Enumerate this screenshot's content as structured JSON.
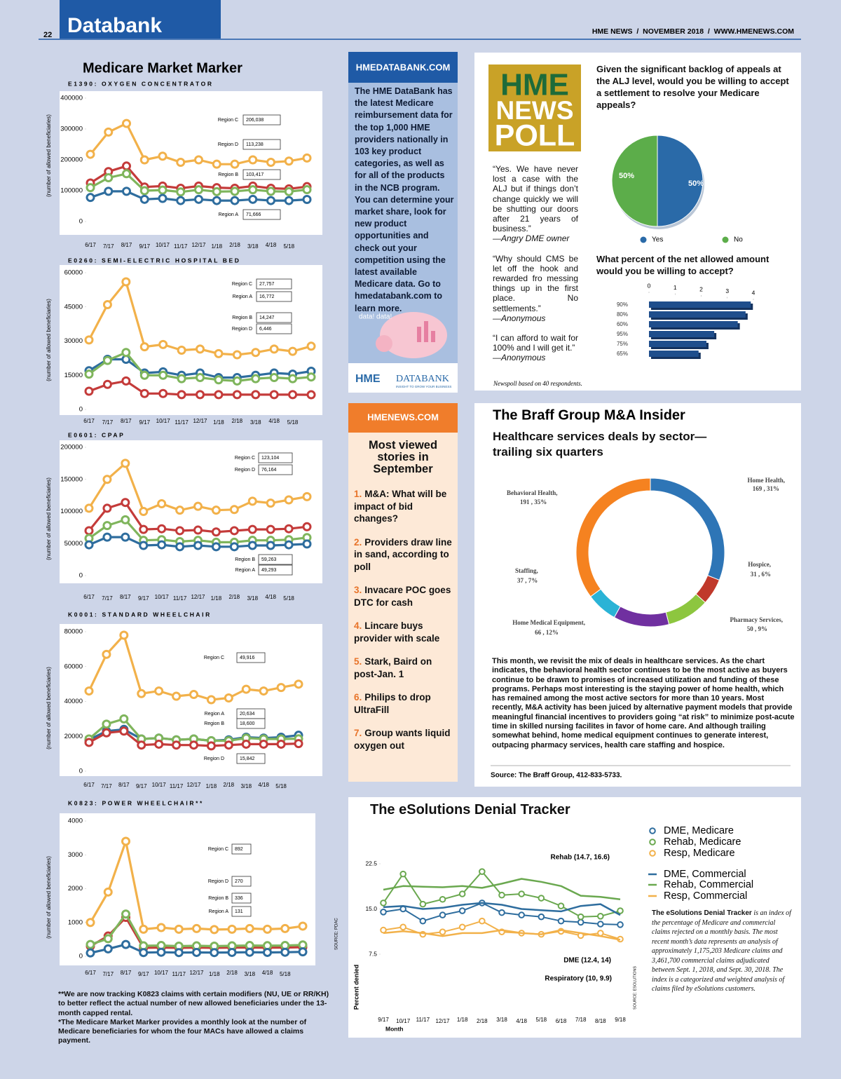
{
  "header": {
    "page": "22",
    "section": "Databank",
    "masthead": "HME NEWS  /  NOVEMBER 2018  /  WWW.HMENEWS.COM"
  },
  "market_marker": {
    "title": "Medicare Market Marker",
    "footnotes": [
      "**We are now tracking K0823 claims with certain modifiers (NU, UE or RR/KH) to better reflect the actual number of new allowed beneficiaries under the 13-month capped rental.",
      "*The Medicare Market Marker provides a monthly look at the number of Medicare beneficiaries for whom the four MACs have allowed a claims payment."
    ],
    "source": "SOURCE: PDAC"
  },
  "databank_ad": {
    "header": "HMEDATABANK.COM",
    "body": "The HME DataBank has the latest Medicare reimbursement data for the top 1,000 HME providers nationally in 103 key product categories, as well as for all of the products in the NCB program. You can determine your market share, look for new product opportunities and check out your competition using the latest available Medicare data. Go to hmedatabank.com to learn more.",
    "bubble": "data! data!",
    "logo_a": "HME",
    "logo_b": "DATABANK",
    "tagline": "INSIGHT TO GROW YOUR BUSINESS"
  },
  "most_viewed": {
    "header": "HMENEWS.COM",
    "title": "Most viewed stories in September",
    "items": [
      {
        "num": "1.",
        "text": "M&A: What will be impact of bid changes?"
      },
      {
        "num": "2.",
        "text": "Providers draw line in sand, according to poll"
      },
      {
        "num": "3.",
        "text": "Invacare POC goes DTC for cash"
      },
      {
        "num": "4.",
        "text": "Lincare buys provider with scale"
      },
      {
        "num": "5.",
        "text": "Stark, Baird on post-Jan. 1"
      },
      {
        "num": "6.",
        "text": "Philips to drop UltraFill"
      },
      {
        "num": "7.",
        "text": "Group wants liquid oxygen out"
      }
    ]
  },
  "poll": {
    "logo": [
      "HME",
      "NEWS",
      "POLL"
    ],
    "quotes": [
      {
        "text": "“Yes. We have never lost a case with the ALJ but if things don’t change quickly we will be shutting our doors after 21 years of business.”",
        "by": "—Angry DME owner"
      },
      {
        "text": "“Why should CMS be let off the hook and rewarded fro messing things up in the first place. No settlements.”",
        "by": "—Anonymous"
      },
      {
        "text": "“I can afford to wait for 100% and I will get it.”",
        "by": "—Anonymous"
      }
    ],
    "note": "Newspoll based on 40 respondents."
  },
  "braff": {
    "title": "The Braff Group M&A Insider",
    "subtitle": "Healthcare services deals by sector—trailing six quarters",
    "body": "This month, we revisit the mix of deals in healthcare services. As the chart indicates, the behavioral health sector continues to be the most active as buyers continue to be drawn to promises of increased utilization and funding of these programs. Perhaps most interesting is the staying power of home health, which has remained among the most active sectors for more than 10 years. Most recently, M&A activity has been juiced by alternative payment models that provide meaningful financial incentives to providers going “at risk” to minimize post-acute time in skilled nursing facilites in favor of home care. And although trailing somewhat behind, home medical equipment continues to generate interest, outpacing pharmacy services, health care staffing and hospice.",
    "source": "Source: The Braff Group, 412-833-5733."
  },
  "denial": {
    "desc_lead": "The eSolutions Denial Tracker",
    "desc": "is an index of the percentage of Medicare and commercial claims rejected on a monthly basis. The most recent month’s data represents an analysis of approximately 1,175,203 Medicare claims and 3,461,700 commercial claims adjudicated between Sept. 1, 2018, and Sept. 30, 2018. The index is a categorized and weighted analysis of claims filed by eSolutions customers.",
    "source": "SOURCE: ESOLUTIONS"
  },
  "chart_data": [
    {
      "type": "line",
      "title": "E1390: OXYGEN CONCENTRATOR",
      "ylabel": "(number of allowed beneficiaries)",
      "marker": "o",
      "categories": [
        "6/17",
        "7/17",
        "8/17",
        "9/17",
        "10/17",
        "11/17",
        "12/17",
        "1/18",
        "2/18",
        "3/18",
        "4/18",
        "5/18",
        null
      ],
      "ylim": [
        0,
        400000
      ],
      "yticks": [
        0,
        100000,
        200000,
        300000,
        400000
      ],
      "series": [
        {
          "name": "Region C",
          "color": "#f2b14a",
          "value_label": "206,038",
          "values": [
            218000,
            290000,
            318000,
            200000,
            212000,
            192000,
            200000,
            186000,
            186000,
            200000,
            192000,
            196000,
            206038
          ]
        },
        {
          "name": "Region D",
          "color": "#c43b3a",
          "value_label": "113,238",
          "values": [
            125000,
            162000,
            180000,
            112000,
            115000,
            108000,
            115000,
            110000,
            108000,
            115000,
            108000,
            106000,
            113238
          ]
        },
        {
          "name": "Region B",
          "color": "#7fb55c",
          "value_label": "103,417",
          "values": [
            110000,
            142000,
            155000,
            100000,
            102000,
            96000,
            103000,
            97000,
            98000,
            103000,
            98000,
            97000,
            103417
          ]
        },
        {
          "name": "Region A",
          "color": "#2e6d9e",
          "value_label": "71,666",
          "values": [
            78000,
            98000,
            98000,
            72000,
            75000,
            68000,
            72000,
            68000,
            68000,
            72000,
            68000,
            68000,
            71666
          ]
        }
      ]
    },
    {
      "type": "line",
      "title": "E0260: SEMI-ELECTRIC HOSPITAL BED",
      "ylabel": "(number of allowed beneficiaries)",
      "marker": "o",
      "categories": [
        "6/17",
        "7/17",
        "8/17",
        "9/17",
        "10/17",
        "11/17",
        "12/17",
        "1/18",
        "2/18",
        "3/18",
        "4/18",
        "5/18",
        null
      ],
      "ylim": [
        0,
        60000
      ],
      "yticks": [
        0,
        15000,
        30000,
        45000,
        60000
      ],
      "series": [
        {
          "name": "Region C",
          "color": "#f2b14a",
          "value_label": "27,757",
          "values": [
            30500,
            46000,
            56000,
            27500,
            28500,
            26000,
            26500,
            24500,
            24000,
            25000,
            26500,
            25500,
            27757
          ]
        },
        {
          "name": "Region A",
          "color": "#2e6d9e",
          "value_label": "16,772",
          "values": [
            17000,
            22000,
            22000,
            16000,
            16500,
            15000,
            16000,
            14000,
            14000,
            15000,
            16000,
            15500,
            16772
          ]
        },
        {
          "name": "Region B",
          "color": "#7fb55c",
          "value_label": "14,247",
          "values": [
            15500,
            21500,
            25000,
            15000,
            15000,
            13500,
            14000,
            13000,
            12500,
            13500,
            14000,
            13500,
            14247
          ]
        },
        {
          "name": "Region D",
          "color": "#c43b3a",
          "value_label": "6,446",
          "values": [
            8000,
            11000,
            12500,
            7000,
            7000,
            6500,
            6500,
            6500,
            6500,
            6500,
            6500,
            6500,
            6446
          ]
        }
      ]
    },
    {
      "type": "line",
      "title": "E0601: CPAP",
      "ylabel": "(number of allowed beneficiaries)",
      "marker": "o",
      "categories": [
        "6/17",
        "7/17",
        "8/17",
        "9/17",
        "10/17",
        "11/17",
        "12/17",
        "1/18",
        "2/18",
        "3/18",
        "4/18",
        "5/18",
        null
      ],
      "ylim": [
        0,
        200000
      ],
      "yticks": [
        0,
        50000,
        100000,
        150000,
        200000
      ],
      "series": [
        {
          "name": "Region C",
          "color": "#f2b14a",
          "value_label": "123,104",
          "values": [
            105000,
            150000,
            175000,
            100000,
            112000,
            102000,
            108000,
            102000,
            103000,
            116000,
            113000,
            118000,
            123104
          ]
        },
        {
          "name": "Region D",
          "color": "#c43b3a",
          "value_label": "76,164",
          "values": [
            70000,
            105000,
            114000,
            72000,
            73000,
            70000,
            71000,
            68000,
            70000,
            72000,
            72000,
            73000,
            76164
          ]
        },
        {
          "name": "Region B",
          "color": "#7fb55c",
          "value_label": "59,263",
          "values": [
            58000,
            78000,
            87000,
            55000,
            56000,
            53000,
            55000,
            52000,
            52000,
            55000,
            55000,
            56000,
            59263
          ]
        },
        {
          "name": "Region A",
          "color": "#2e6d9e",
          "value_label": "49,293",
          "values": [
            48000,
            60000,
            60000,
            47000,
            48000,
            45000,
            47000,
            45000,
            45000,
            47000,
            47000,
            48000,
            49293
          ]
        }
      ]
    },
    {
      "type": "line",
      "title": "K0001: STANDARD WHEELCHAIR",
      "ylabel": "(number of allowed beneficiaries)",
      "marker": "o",
      "categories": [
        "6/17",
        "7/17",
        "8/17",
        "9/17",
        "10/17",
        "11/17",
        "12/17",
        "1/18",
        "2/18",
        "3/18",
        "4/18",
        "5/18",
        null
      ],
      "ylim": [
        0,
        80000
      ],
      "yticks": [
        0,
        20000,
        40000,
        60000,
        80000
      ],
      "series": [
        {
          "name": "Region C",
          "color": "#f2b14a",
          "value_label": "49,916",
          "values": [
            46000,
            67000,
            78000,
            44500,
            46000,
            43000,
            44000,
            41000,
            42000,
            47000,
            46000,
            48000,
            49916
          ]
        },
        {
          "name": "Region A",
          "color": "#2e6d9e",
          "value_label": "20,634",
          "values": [
            18000,
            23000,
            24000,
            18500,
            19000,
            18000,
            18500,
            17500,
            18000,
            19500,
            19000,
            19500,
            20634
          ]
        },
        {
          "name": "Region B",
          "color": "#7fb55c",
          "value_label": "18,600",
          "values": [
            18500,
            27000,
            30000,
            18500,
            19000,
            18000,
            18500,
            17500,
            17500,
            19000,
            18500,
            18500,
            18600
          ]
        },
        {
          "name": "Region D",
          "color": "#c43b3a",
          "value_label": "15,842",
          "values": [
            16500,
            22000,
            23000,
            15000,
            15500,
            15000,
            15000,
            14500,
            15000,
            15500,
            15500,
            15500,
            15842
          ]
        }
      ]
    },
    {
      "type": "line",
      "title": "K0823: POWER WHEELCHAIR**",
      "ylabel": "(number of allowed beneficiaries)",
      "marker": "o",
      "categories": [
        "6/17",
        "7/17",
        "8/17",
        "9/17",
        "10/17",
        "11/17",
        "12/17",
        "1/18",
        "2/18",
        "3/18",
        "4/18",
        "5/18",
        null
      ],
      "ylim": [
        0,
        4000
      ],
      "yticks": [
        0,
        1000,
        2000,
        3000,
        4000
      ],
      "series": [
        {
          "name": "Region C",
          "color": "#f2b14a",
          "value_label": "892",
          "values": [
            1000,
            1900,
            3400,
            800,
            850,
            800,
            820,
            790,
            800,
            820,
            800,
            820,
            892
          ]
        },
        {
          "name": "Region D",
          "color": "#c43b3a",
          "value_label": "270",
          "values": [
            300,
            600,
            1150,
            250,
            260,
            250,
            260,
            250,
            260,
            260,
            255,
            260,
            270
          ]
        },
        {
          "name": "Region B",
          "color": "#7fb55c",
          "value_label": "336",
          "values": [
            350,
            520,
            1250,
            310,
            320,
            300,
            310,
            300,
            310,
            320,
            315,
            320,
            336
          ]
        },
        {
          "name": "Region A",
          "color": "#2e6d9e",
          "value_label": "131",
          "values": [
            100,
            220,
            350,
            110,
            120,
            110,
            115,
            110,
            115,
            120,
            115,
            120,
            131
          ]
        }
      ]
    },
    {
      "type": "pie",
      "title": "Given the significant backlog of appeals at the ALJ level, would you be willing to accept a settlement to resolve your Medicare appeals?",
      "categories": [
        "Yes",
        "No"
      ],
      "values": [
        50,
        50
      ],
      "value_labels": [
        "50%",
        "50%"
      ],
      "colors": [
        "#2a6aa8",
        "#5cad4a"
      ]
    },
    {
      "type": "bar",
      "orientation": "horizontal",
      "title": "What percent of the net allowed amount would you be willing to accept?",
      "categories": [
        "90%",
        "80%",
        "60%",
        "95%",
        "75%",
        "65%"
      ],
      "values": [
        3.9,
        3.7,
        3.4,
        2.5,
        2.2,
        1.9
      ],
      "color": "#1f4e8c",
      "xlim": [
        0,
        4
      ],
      "xticks": [
        0,
        1,
        2,
        3,
        4
      ]
    },
    {
      "type": "donut",
      "categories": [
        "Home Health,",
        "Hospice,",
        "Pharmacy Services,",
        "Home Medical Equipment,",
        "Staffing,",
        "Behavioral Health,"
      ],
      "values": [
        169,
        31,
        50,
        66,
        37,
        191
      ],
      "value_labels": [
        "169 , 31%",
        "31 , 6%",
        "50 , 9%",
        "66 , 12%",
        "37 , 7%",
        "191 , 35%"
      ],
      "colors": [
        "#2e75b6",
        "#c0392b",
        "#8dc63f",
        "#7030a0",
        "#2ab3d6",
        "#f58220"
      ]
    },
    {
      "type": "line",
      "title": "The eSolutions Denial Tracker",
      "ylabel": "Percent denied",
      "xlabel": "Month",
      "categories": [
        "9/17",
        "10/17",
        "11/17",
        "12/17",
        "1/18",
        "2/18",
        "3/18",
        "4/18",
        "5/18",
        "6/18",
        "7/18",
        "8/18",
        "9/18"
      ],
      "ylim": [
        0,
        23.5
      ],
      "yticks": [
        7.5,
        {
          "value": 15,
          "label": "15.0"
        },
        22.5
      ],
      "annotations": [
        "Rehab (14.7, 16.6)",
        "DME (12.4, 14)",
        "Respiratory (10, 9.9)"
      ],
      "series": [
        {
          "name": "DME, Medicare",
          "color": "#2e6d9e",
          "marker": "o",
          "values": [
            14.5,
            15.0,
            13.0,
            14.0,
            14.7,
            16.0,
            14.4,
            14.0,
            13.7,
            13.0,
            12.8,
            12.5,
            12.4
          ]
        },
        {
          "name": "Rehab, Medicare",
          "color": "#6aa84f",
          "marker": "o",
          "values": [
            16.0,
            20.8,
            15.8,
            16.6,
            17.5,
            21.2,
            17.3,
            17.5,
            16.8,
            15.5,
            13.7,
            13.8,
            14.7
          ]
        },
        {
          "name": "Resp, Medicare",
          "color": "#f2b14a",
          "marker": "o",
          "values": [
            11.5,
            12.0,
            10.8,
            11.2,
            12.0,
            13.0,
            11.2,
            11.0,
            10.8,
            11.3,
            10.6,
            11.0,
            10.0
          ]
        },
        {
          "name": "DME, Commercial",
          "color": "#2e6d9e",
          "values": [
            15.3,
            15.5,
            15.0,
            15.2,
            15.7,
            16.0,
            15.7,
            15.0,
            14.8,
            14.6,
            15.5,
            15.8,
            14.0
          ]
        },
        {
          "name": "Rehab, Commercial",
          "color": "#6aa84f",
          "values": [
            18.2,
            18.8,
            18.7,
            18.6,
            18.8,
            18.5,
            19.2,
            20.0,
            19.5,
            18.8,
            17.2,
            17.0,
            16.6
          ]
        },
        {
          "name": "Resp, Commercial",
          "color": "#f2b14a",
          "values": [
            11.0,
            11.3,
            11.0,
            10.5,
            11.0,
            11.0,
            11.5,
            11.0,
            10.8,
            11.5,
            11.0,
            10.5,
            9.9
          ]
        }
      ]
    }
  ]
}
